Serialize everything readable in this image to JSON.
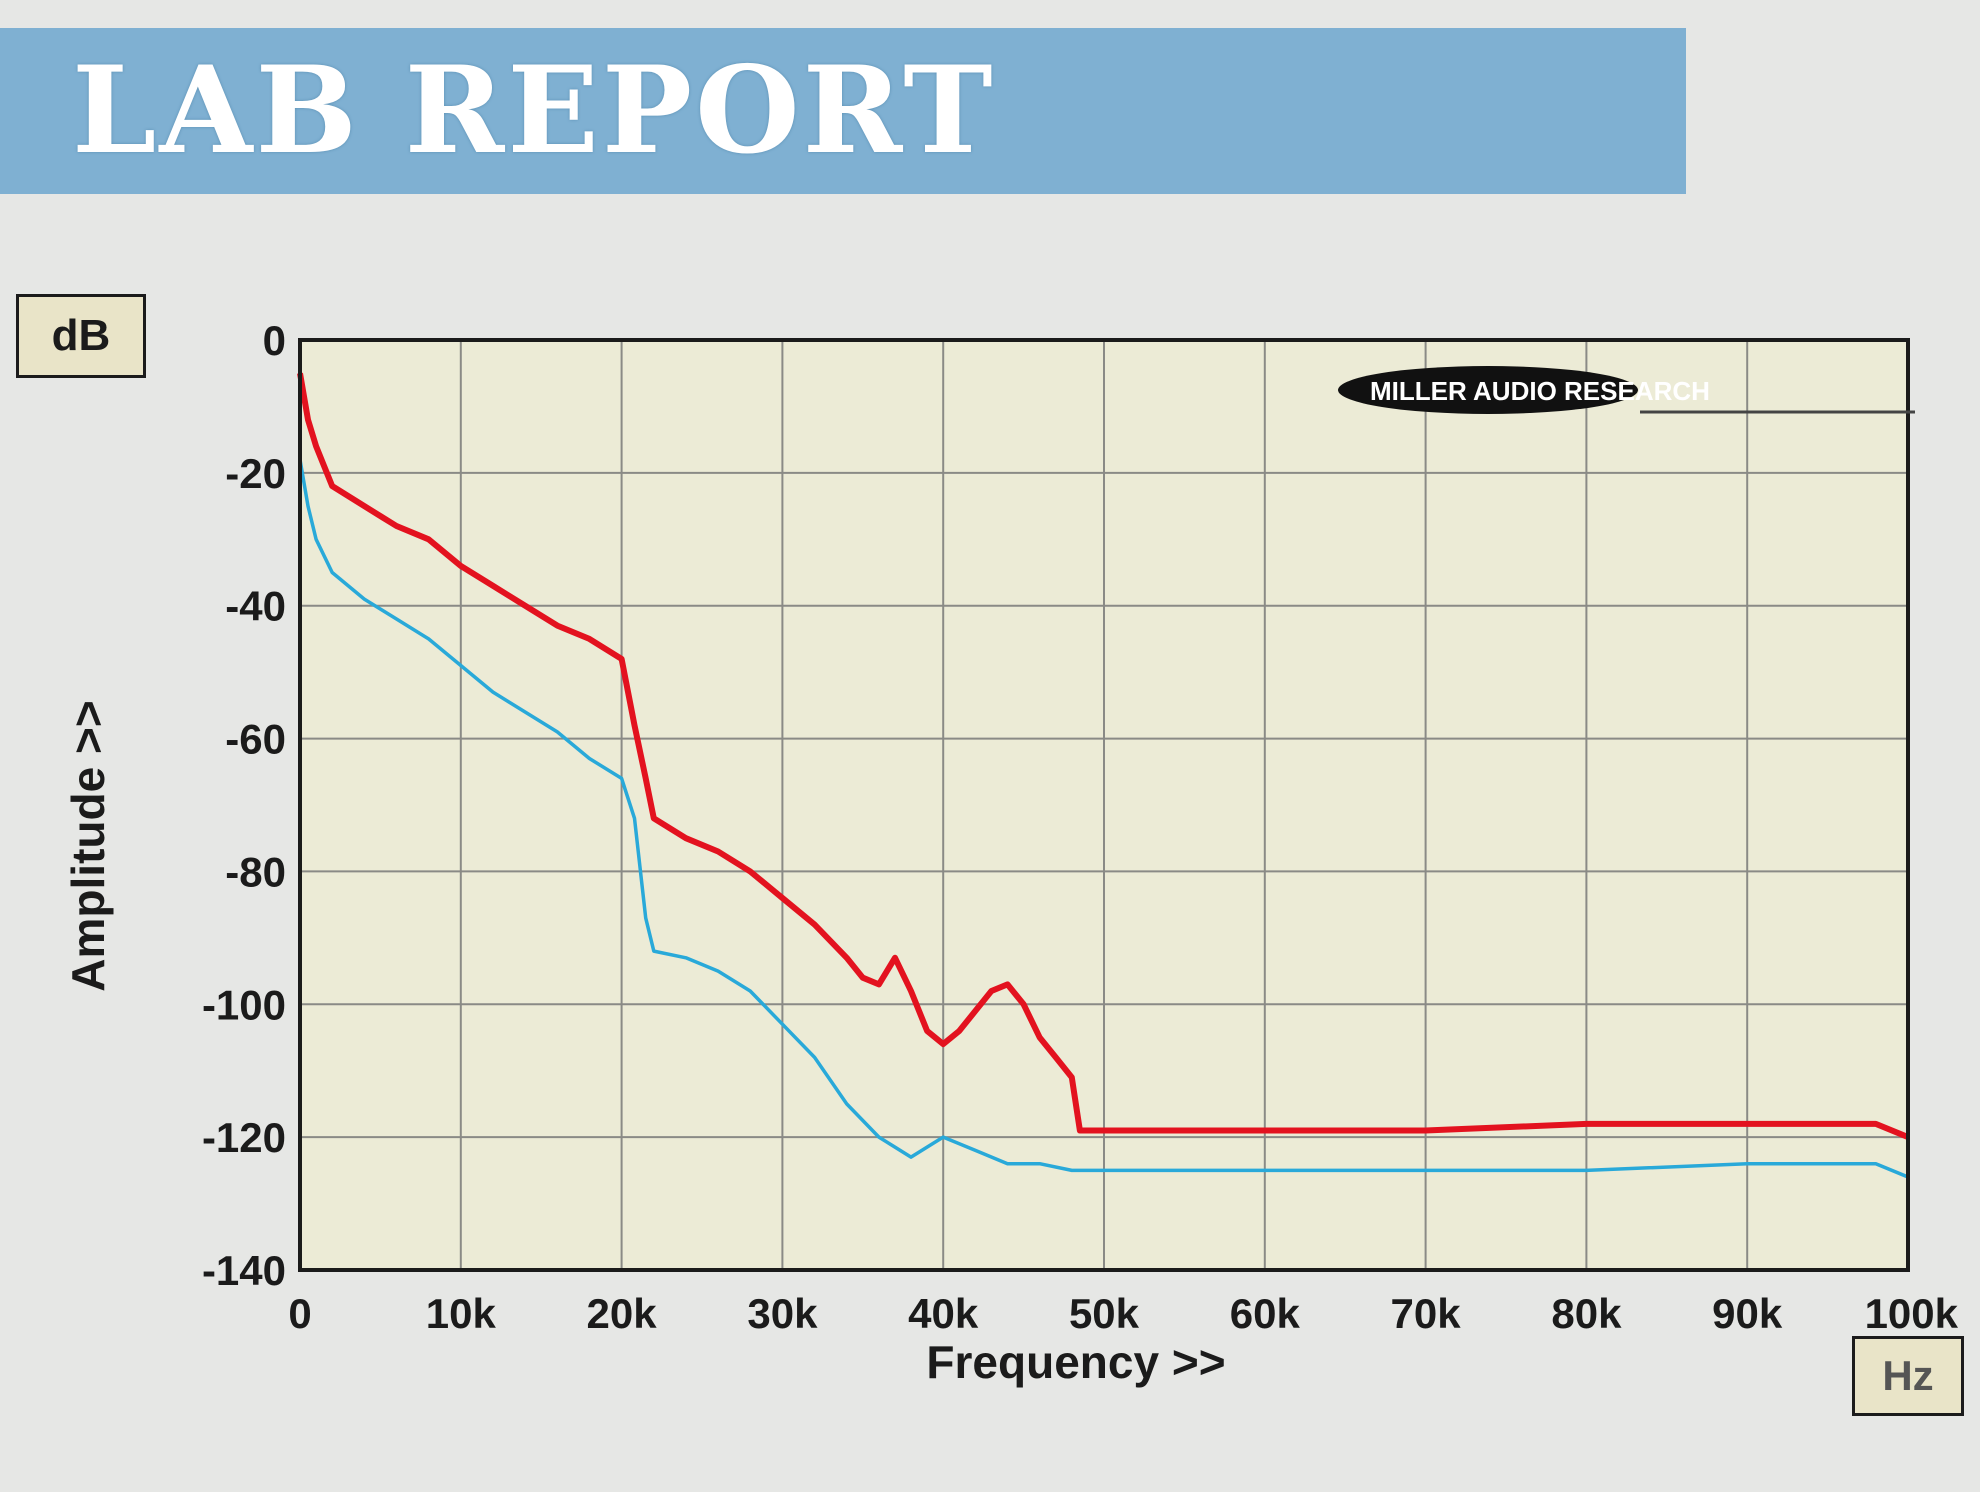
{
  "banner": {
    "title": "LAB REPORT"
  },
  "logo": {
    "text": "MILLER AUDIO RESEARCH"
  },
  "colors": {
    "banner": "#7fb0d2",
    "plot_bg": "#ecebd6",
    "red": "#e3121f",
    "blue": "#29a9d9",
    "grid": "#8a8a86"
  },
  "chart_data": {
    "type": "line",
    "ylabel": "Amplitude >>",
    "xlabel": "Frequency >>",
    "y_unit": "dB",
    "x_unit": "Hz",
    "xlim": [
      0,
      100000
    ],
    "ylim": [
      -140,
      0
    ],
    "x_ticks": [
      {
        "value": 0,
        "label": "0"
      },
      {
        "value": 10000,
        "label": "10k"
      },
      {
        "value": 20000,
        "label": "20k"
      },
      {
        "value": 30000,
        "label": "30k"
      },
      {
        "value": 40000,
        "label": "40k"
      },
      {
        "value": 50000,
        "label": "50k"
      },
      {
        "value": 60000,
        "label": "60k"
      },
      {
        "value": 70000,
        "label": "70k"
      },
      {
        "value": 80000,
        "label": "80k"
      },
      {
        "value": 90000,
        "label": "90k"
      },
      {
        "value": 100000,
        "label": "100k"
      }
    ],
    "y_ticks": [
      {
        "value": 0,
        "label": "0"
      },
      {
        "value": -20,
        "label": "-20"
      },
      {
        "value": -40,
        "label": "-40"
      },
      {
        "value": -60,
        "label": "-60"
      },
      {
        "value": -80,
        "label": "-80"
      },
      {
        "value": -100,
        "label": "-100"
      },
      {
        "value": -120,
        "label": "-120"
      },
      {
        "value": -140,
        "label": "-140"
      }
    ],
    "grid": true,
    "series": [
      {
        "color": "#e3121f",
        "x": [
          0,
          500,
          1000,
          2000,
          4000,
          6000,
          8000,
          10000,
          12000,
          14000,
          16000,
          18000,
          20000,
          20800,
          21500,
          22000,
          24000,
          26000,
          28000,
          30000,
          32000,
          34000,
          35000,
          36000,
          37000,
          38000,
          39000,
          40000,
          41000,
          42000,
          43000,
          44000,
          45000,
          46000,
          47000,
          48000,
          48500,
          50000,
          60000,
          70000,
          80000,
          90000,
          98000,
          100000
        ],
        "y": [
          -5,
          -12,
          -16,
          -22,
          -25,
          -28,
          -30,
          -34,
          -37,
          -40,
          -43,
          -45,
          -48,
          -58,
          -66,
          -72,
          -75,
          -77,
          -80,
          -84,
          -88,
          -93,
          -96,
          -97,
          -93,
          -98,
          -104,
          -106,
          -104,
          -101,
          -98,
          -97,
          -100,
          -105,
          -108,
          -111,
          -119,
          -119,
          -119,
          -119,
          -118,
          -118,
          -118,
          -120
        ]
      },
      {
        "color": "#29a9d9",
        "x": [
          0,
          500,
          1000,
          2000,
          4000,
          6000,
          8000,
          10000,
          12000,
          14000,
          16000,
          18000,
          20000,
          20800,
          21500,
          22000,
          24000,
          26000,
          28000,
          30000,
          32000,
          34000,
          36000,
          38000,
          40000,
          42000,
          44000,
          46000,
          48000,
          50000,
          60000,
          70000,
          80000,
          90000,
          98000,
          100000
        ],
        "y": [
          -18,
          -25,
          -30,
          -35,
          -39,
          -42,
          -45,
          -49,
          -53,
          -56,
          -59,
          -63,
          -66,
          -72,
          -87,
          -92,
          -93,
          -95,
          -98,
          -103,
          -108,
          -115,
          -120,
          -123,
          -120,
          -122,
          -124,
          -124,
          -125,
          -125,
          -125,
          -125,
          -125,
          -124,
          -124,
          -126
        ]
      }
    ]
  }
}
